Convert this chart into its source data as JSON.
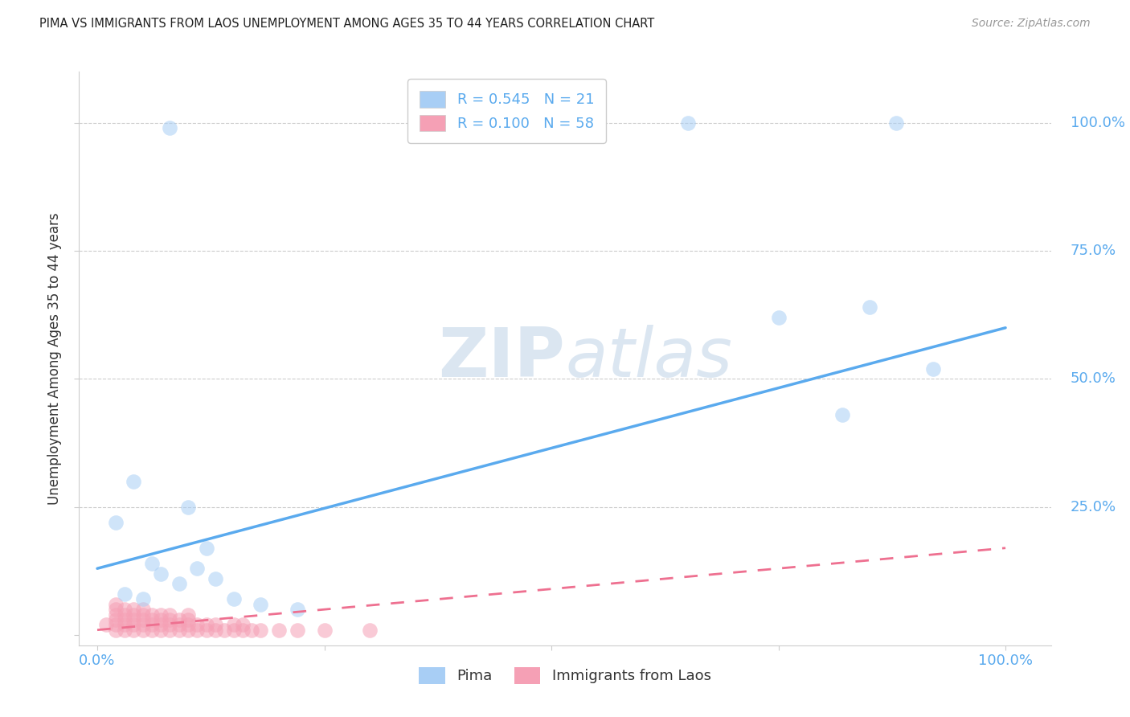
{
  "title": "PIMA VS IMMIGRANTS FROM LAOS UNEMPLOYMENT AMONG AGES 35 TO 44 YEARS CORRELATION CHART",
  "source": "Source: ZipAtlas.com",
  "ylabel": "Unemployment Among Ages 35 to 44 years",
  "pima_color": "#a8cef5",
  "laos_color": "#f5a0b5",
  "pima_line_color": "#5aaaee",
  "laos_line_color": "#ee7090",
  "background_color": "#ffffff",
  "watermark_zip": "ZIP",
  "watermark_atlas": "atlas",
  "tick_color": "#5aaaee",
  "label_color": "#333333",
  "grid_color": "#cccccc",
  "legend_pima_label": "R = 0.545   N = 21",
  "legend_laos_label": "R = 0.100   N = 58",
  "legend_bottom_pima": "Pima",
  "legend_bottom_laos": "Immigrants from Laos",
  "pima_x": [
    0.08,
    0.65,
    0.04,
    0.02,
    0.88,
    0.75,
    0.85,
    0.82,
    0.92,
    0.06,
    0.07,
    0.09,
    0.11,
    0.13,
    0.03,
    0.15,
    0.05,
    0.18,
    0.22,
    0.1,
    0.12
  ],
  "pima_y": [
    0.99,
    1.0,
    0.3,
    0.22,
    1.0,
    0.62,
    0.64,
    0.43,
    0.52,
    0.14,
    0.12,
    0.1,
    0.13,
    0.11,
    0.08,
    0.07,
    0.07,
    0.06,
    0.05,
    0.25,
    0.17
  ],
  "laos_x": [
    0.01,
    0.02,
    0.02,
    0.02,
    0.02,
    0.02,
    0.02,
    0.03,
    0.03,
    0.03,
    0.03,
    0.03,
    0.04,
    0.04,
    0.04,
    0.04,
    0.04,
    0.05,
    0.05,
    0.05,
    0.05,
    0.05,
    0.06,
    0.06,
    0.06,
    0.06,
    0.07,
    0.07,
    0.07,
    0.07,
    0.08,
    0.08,
    0.08,
    0.08,
    0.09,
    0.09,
    0.09,
    0.1,
    0.1,
    0.1,
    0.1,
    0.11,
    0.11,
    0.12,
    0.12,
    0.13,
    0.13,
    0.14,
    0.15,
    0.15,
    0.16,
    0.16,
    0.17,
    0.18,
    0.2,
    0.22,
    0.25,
    0.3
  ],
  "laos_y": [
    0.02,
    0.01,
    0.02,
    0.03,
    0.04,
    0.05,
    0.06,
    0.01,
    0.02,
    0.03,
    0.04,
    0.05,
    0.01,
    0.02,
    0.03,
    0.04,
    0.05,
    0.01,
    0.02,
    0.03,
    0.04,
    0.05,
    0.01,
    0.02,
    0.03,
    0.04,
    0.01,
    0.02,
    0.03,
    0.04,
    0.01,
    0.02,
    0.03,
    0.04,
    0.01,
    0.02,
    0.03,
    0.01,
    0.02,
    0.03,
    0.04,
    0.01,
    0.02,
    0.01,
    0.02,
    0.01,
    0.02,
    0.01,
    0.01,
    0.02,
    0.01,
    0.02,
    0.01,
    0.01,
    0.01,
    0.01,
    0.01,
    0.01
  ],
  "pima_trendline_x": [
    0.0,
    1.0
  ],
  "pima_trendline_y": [
    0.13,
    0.6
  ],
  "laos_trendline_x": [
    0.0,
    1.0
  ],
  "laos_trendline_y": [
    0.01,
    0.17
  ],
  "dot_size": 180,
  "xlim": [
    -0.02,
    1.05
  ],
  "ylim": [
    -0.02,
    1.1
  ],
  "x_ticks": [
    0.0,
    0.25,
    0.5,
    0.75,
    1.0
  ],
  "y_ticks": [
    0.0,
    0.25,
    0.5,
    0.75,
    1.0
  ],
  "x_tick_labels_left": "0.0%",
  "x_tick_labels_right": "100.0%",
  "y_tick_labels": [
    "25.0%",
    "50.0%",
    "75.0%",
    "100.0%"
  ]
}
